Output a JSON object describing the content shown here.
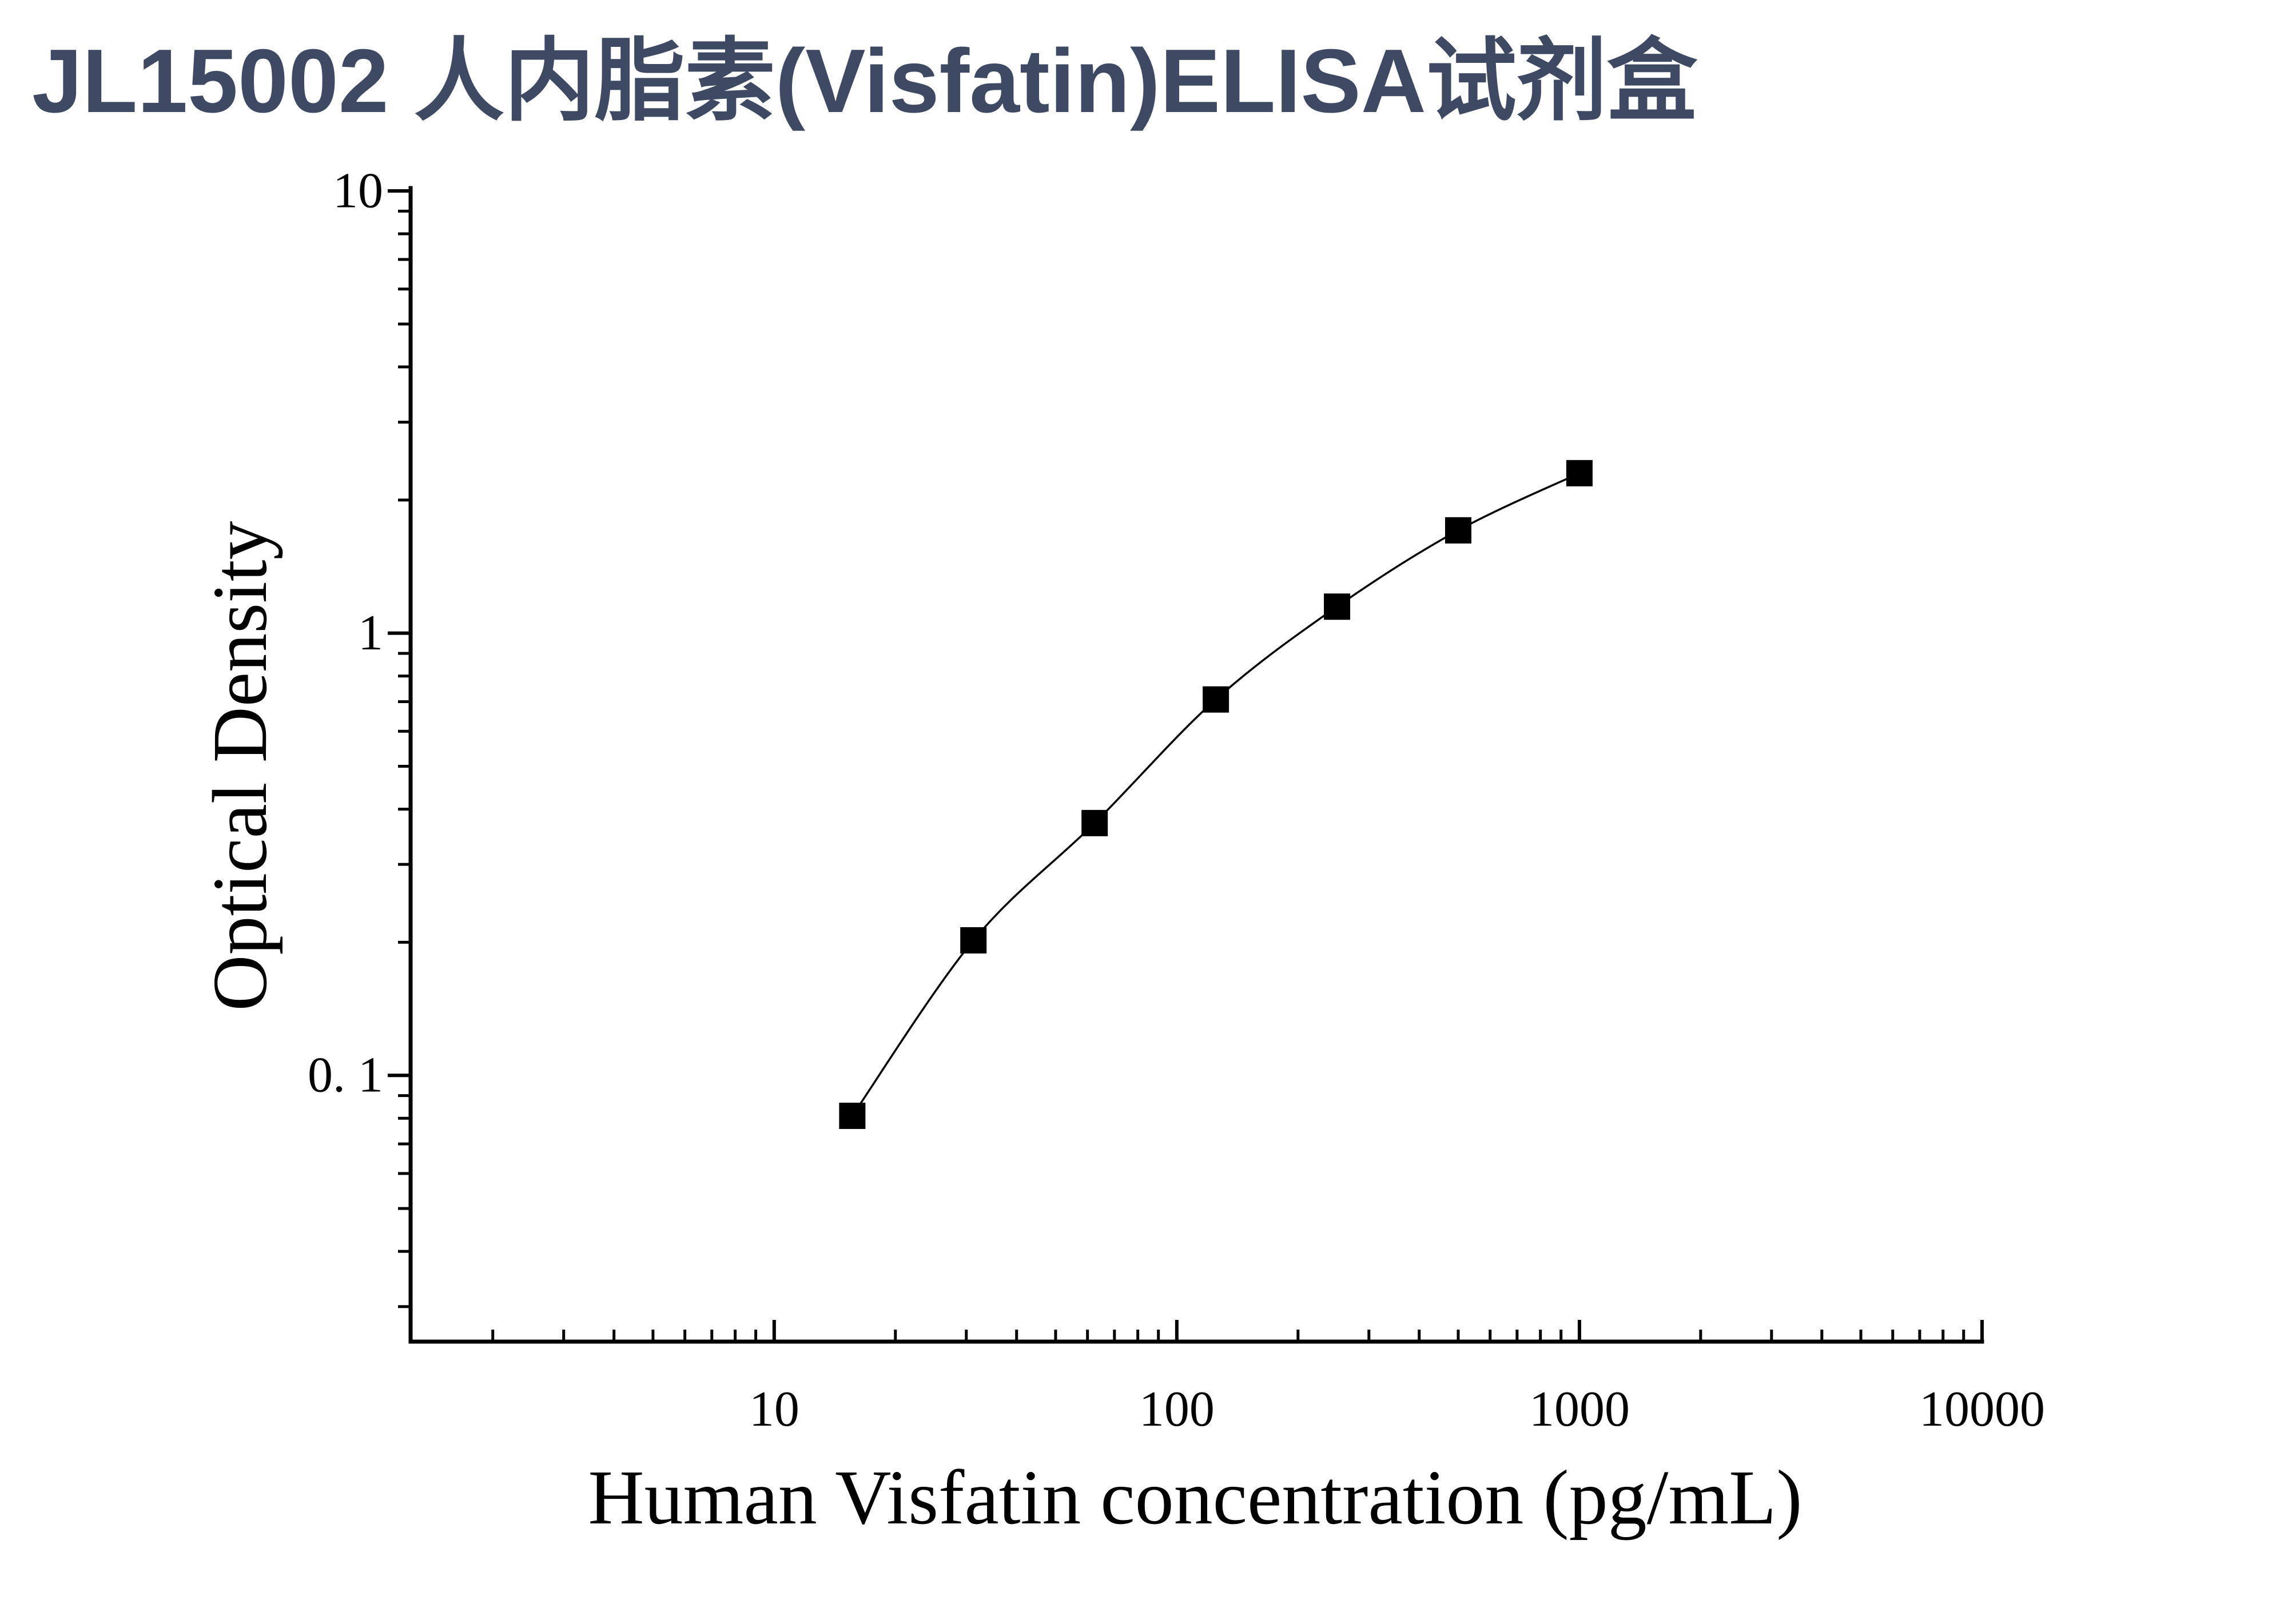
{
  "chart_data": {
    "type": "scatter",
    "title": "JL15002 人内脂素(Visfatin)ELISA试剂盒",
    "xlabel": "Human Visfatin concentration (pg/mL)",
    "ylabel": "Optical Density",
    "x_scale": "log",
    "y_scale": "log",
    "xlim": [
      1.25,
      10000
    ],
    "ylim": [
      0.025,
      10
    ],
    "grid": false,
    "legend": false,
    "x_ticks": [
      {
        "value": 10,
        "label": "10"
      },
      {
        "value": 100,
        "label": "100"
      },
      {
        "value": 1000,
        "label": "1000"
      },
      {
        "value": 10000,
        "label": "10000"
      }
    ],
    "y_ticks": [
      {
        "value": 10,
        "label": "10"
      },
      {
        "value": 1,
        "label": "1"
      },
      {
        "value": 0.1,
        "label": "0. 1"
      }
    ],
    "series": [
      {
        "color": "#000000",
        "fit_curve": true,
        "x": [
          15.63,
          31.25,
          62.5,
          125,
          250,
          500,
          1000
        ],
        "y": [
          0.081,
          0.202,
          0.372,
          0.708,
          1.148,
          1.708,
          2.3
        ]
      }
    ]
  },
  "colors": {
    "title": "#3e4a63",
    "axis": "#000000"
  }
}
